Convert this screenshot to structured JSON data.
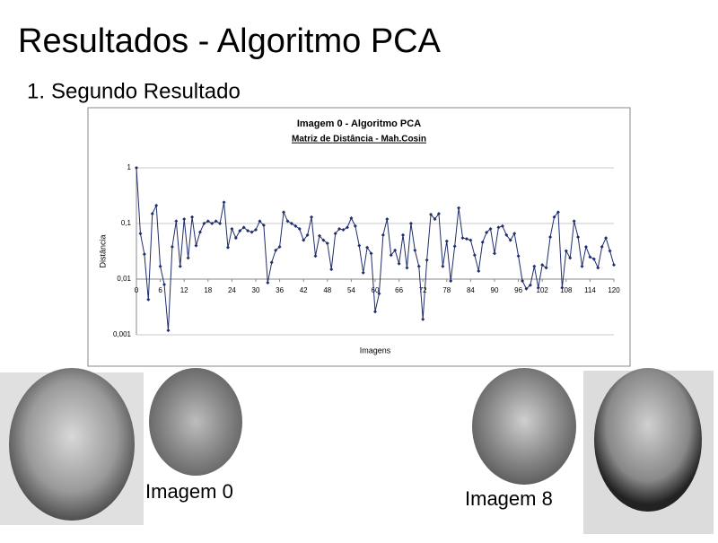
{
  "header": {
    "title": "Resultados - Algoritmo PCA"
  },
  "list": [
    {
      "marker": "1.",
      "text": "Segundo Resultado"
    }
  ],
  "captions": [
    "Imagem 0",
    "Imagem 8"
  ],
  "chart_data": {
    "type": "line",
    "title": "Imagem 0 - Algoritmo PCA",
    "subtitle": "Matriz de Distância - Mah.Cosin",
    "xlabel": "Imagens",
    "ylabel": "Distância",
    "ylog": true,
    "xaxis_at": 0.01,
    "color": "#1f2d6b",
    "grid": true,
    "xlim": [
      0,
      120
    ],
    "xticks": [
      0,
      6,
      12,
      18,
      24,
      30,
      36,
      42,
      48,
      54,
      60,
      66,
      72,
      78,
      84,
      90,
      96,
      102,
      108,
      114,
      120
    ],
    "ylim": [
      0.001,
      1
    ],
    "yticks": [
      {
        "value": 0.001,
        "label": "0,001"
      },
      {
        "value": 0.01,
        "label": "0,01"
      },
      {
        "value": 0.1,
        "label": "0,1"
      },
      1
    ],
    "x": [
      0,
      1,
      2,
      3,
      4,
      5,
      6,
      7,
      8,
      9,
      10,
      11,
      12,
      13,
      14,
      15,
      16,
      17,
      18,
      19,
      20,
      21,
      22,
      23,
      24,
      25,
      26,
      27,
      28,
      29,
      30,
      31,
      32,
      33,
      34,
      35,
      36,
      37,
      38,
      39,
      40,
      41,
      42,
      43,
      44,
      45,
      46,
      47,
      48,
      49,
      50,
      51,
      52,
      53,
      54,
      55,
      56,
      57,
      58,
      59,
      60,
      61,
      62,
      63,
      64,
      65,
      66,
      67,
      68,
      69,
      70,
      71,
      72,
      73,
      74,
      75,
      76,
      77,
      78,
      79,
      80,
      81,
      82,
      83,
      84,
      85,
      86,
      87,
      88,
      89,
      90,
      91,
      92,
      93,
      94,
      95,
      96,
      97,
      98,
      99,
      100,
      101,
      102,
      103,
      104,
      105,
      106,
      107,
      108,
      109,
      110,
      111,
      112,
      113,
      114,
      115,
      116,
      117,
      118,
      119,
      120
    ],
    "values": [
      1,
      0.066,
      0.028,
      0.0043,
      0.15,
      0.21,
      0.017,
      0.008,
      0.0012,
      0.038,
      0.11,
      0.017,
      0.12,
      0.024,
      0.13,
      0.04,
      0.07,
      0.1,
      0.11,
      0.1,
      0.11,
      0.1,
      0.24,
      0.037,
      0.08,
      0.055,
      0.074,
      0.085,
      0.074,
      0.07,
      0.077,
      0.11,
      0.093,
      0.0086,
      0.02,
      0.033,
      0.038,
      0.16,
      0.11,
      0.1,
      0.09,
      0.08,
      0.05,
      0.062,
      0.13,
      0.026,
      0.06,
      0.05,
      0.044,
      0.015,
      0.066,
      0.08,
      0.077,
      0.085,
      0.125,
      0.09,
      0.04,
      0.013,
      0.037,
      0.029,
      0.0026,
      0.0055,
      0.062,
      0.12,
      0.027,
      0.033,
      0.019,
      0.062,
      0.016,
      0.1,
      0.033,
      0.017,
      0.0019,
      0.022,
      0.145,
      0.12,
      0.15,
      0.017,
      0.048,
      0.0093,
      0.039,
      0.19,
      0.055,
      0.053,
      0.05,
      0.027,
      0.014,
      0.046,
      0.069,
      0.08,
      0.029,
      0.085,
      0.09,
      0.062,
      0.05,
      0.066,
      0.026,
      0.0093,
      0.0067,
      0.0078,
      0.017,
      0.007,
      0.018,
      0.016,
      0.057,
      0.13,
      0.16,
      0.007,
      0.032,
      0.024,
      0.11,
      0.057,
      0.017,
      0.038,
      0.025,
      0.023,
      0.016,
      0.038,
      0.055,
      0.032,
      0.018
    ]
  }
}
